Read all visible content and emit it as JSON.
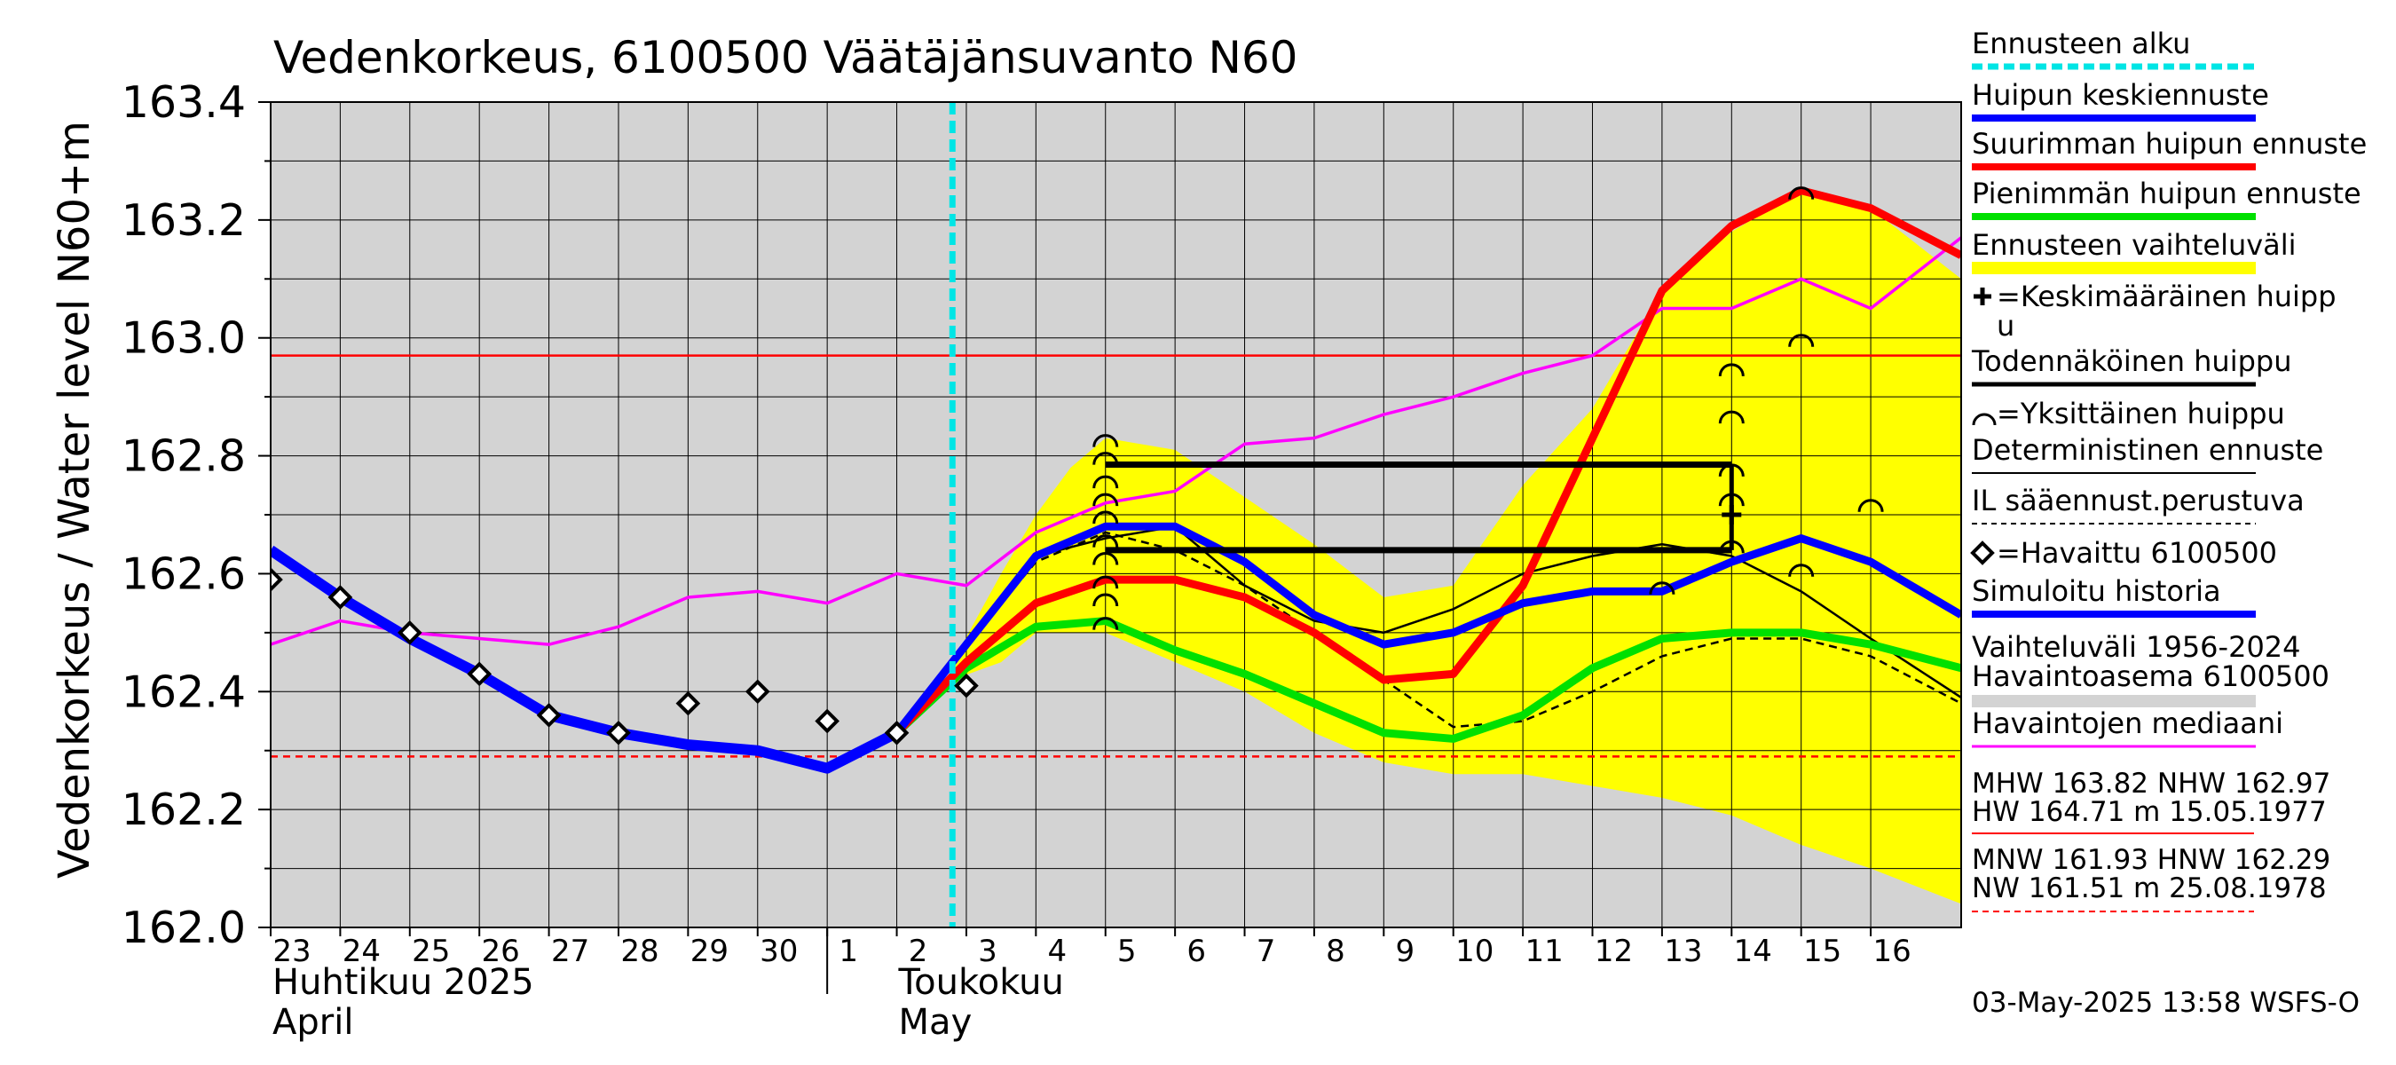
{
  "chart_data": {
    "type": "line",
    "title": "Vedenkorkeus, 6100500 Väätäjänsuvanto N60",
    "ylabel": "Vedenkorkeus / Water level",
    "yunit": "N60+m",
    "ylim": [
      162.0,
      163.4
    ],
    "yticks": [
      "162.0",
      "162.2",
      "162.4",
      "162.6",
      "162.8",
      "163.0",
      "163.2",
      "163.4"
    ],
    "xlim": [
      23,
      47.3
    ],
    "x_day_labels": [
      {
        "x": 23,
        "label": "23"
      },
      {
        "x": 24,
        "label": "24"
      },
      {
        "x": 25,
        "label": "25"
      },
      {
        "x": 26,
        "label": "26"
      },
      {
        "x": 27,
        "label": "27"
      },
      {
        "x": 28,
        "label": "28"
      },
      {
        "x": 29,
        "label": "29"
      },
      {
        "x": 30,
        "label": "30"
      },
      {
        "x": 31,
        "label": "1"
      },
      {
        "x": 32,
        "label": "2"
      },
      {
        "x": 33,
        "label": "3"
      },
      {
        "x": 34,
        "label": "4"
      },
      {
        "x": 35,
        "label": "5"
      },
      {
        "x": 36,
        "label": "6"
      },
      {
        "x": 37,
        "label": "7"
      },
      {
        "x": 38,
        "label": "8"
      },
      {
        "x": 39,
        "label": "9"
      },
      {
        "x": 40,
        "label": "10"
      },
      {
        "x": 41,
        "label": "11"
      },
      {
        "x": 42,
        "label": "12"
      },
      {
        "x": 43,
        "label": "13"
      },
      {
        "x": 44,
        "label": "14"
      },
      {
        "x": 45,
        "label": "15"
      },
      {
        "x": 46,
        "label": "16"
      }
    ],
    "month_labels": [
      {
        "x": 23,
        "fi": "Huhtikuu  2025",
        "en": "April"
      },
      {
        "x": 32,
        "fi": "Toukokuu",
        "en": "May"
      }
    ],
    "month_boundary_x": 31,
    "forecast_start_x": 32.8,
    "hlines": [
      {
        "name": "NHW",
        "value": 162.97,
        "color": "#ff0000",
        "style": "solid"
      },
      {
        "name": "HNW",
        "value": 162.29,
        "color": "#ff0000",
        "style": "dashed"
      }
    ],
    "series": [
      {
        "name": "Vaihteluväli 1956-2024",
        "kind": "band",
        "color": "#d3d3d3",
        "x": [
          23,
          47.3
        ],
        "lower": [
          162.0,
          162.0
        ],
        "upper": [
          163.4,
          163.4
        ]
      },
      {
        "name": "Ennusteen vaihteluväli",
        "kind": "band",
        "color": "#ffff00",
        "x": [
          32.8,
          33.5,
          34,
          34.5,
          35,
          36,
          37,
          38,
          39,
          40,
          41,
          42,
          43,
          44,
          45,
          46,
          47.3
        ],
        "lower": [
          162.42,
          162.45,
          162.5,
          162.5,
          162.5,
          162.45,
          162.4,
          162.33,
          162.28,
          162.26,
          162.26,
          162.24,
          162.22,
          162.19,
          162.14,
          162.1,
          162.04
        ],
        "upper": [
          162.45,
          162.6,
          162.7,
          162.78,
          162.83,
          162.81,
          162.73,
          162.65,
          162.56,
          162.58,
          162.75,
          162.88,
          163.08,
          163.18,
          163.25,
          163.22,
          163.1
        ]
      },
      {
        "name": "Havaintojen mediaani",
        "kind": "line",
        "color": "#ff00ff",
        "width": 3.5,
        "x": [
          23,
          24,
          25,
          26,
          27,
          28,
          29,
          30,
          31,
          32,
          33,
          34,
          35,
          36,
          37,
          38,
          39,
          40,
          41,
          42,
          43,
          44,
          45,
          46,
          47.3
        ],
        "y": [
          162.48,
          162.52,
          162.5,
          162.49,
          162.48,
          162.51,
          162.56,
          162.57,
          162.55,
          162.6,
          162.58,
          162.67,
          162.72,
          162.74,
          162.82,
          162.83,
          162.87,
          162.9,
          162.94,
          162.97,
          163.05,
          163.05,
          163.1,
          163.05,
          163.17
        ]
      },
      {
        "name": "IL sääennust.perustuva",
        "kind": "line",
        "color": "#000000",
        "width": 2.5,
        "dash": "9 6",
        "x": [
          32,
          33,
          34,
          35,
          36,
          37,
          38,
          39,
          40,
          41,
          42,
          43,
          44,
          45,
          46,
          47.3
        ],
        "y": [
          162.33,
          162.48,
          162.62,
          162.67,
          162.64,
          162.58,
          162.5,
          162.42,
          162.34,
          162.35,
          162.4,
          162.46,
          162.49,
          162.49,
          162.46,
          162.38
        ]
      },
      {
        "name": "Deterministinen ennuste",
        "kind": "line",
        "color": "#000000",
        "width": 2.5,
        "x": [
          32,
          33,
          34,
          35,
          36,
          37,
          38,
          39,
          40,
          41,
          42,
          43,
          44,
          45,
          46,
          47.3
        ],
        "y": [
          162.33,
          162.48,
          162.63,
          162.66,
          162.68,
          162.58,
          162.52,
          162.5,
          162.54,
          162.6,
          162.63,
          162.65,
          162.63,
          162.57,
          162.49,
          162.39
        ]
      },
      {
        "name": "Pienimmän huipun ennuste",
        "kind": "line",
        "color": "#00e000",
        "width": 9,
        "x": [
          32,
          33,
          34,
          35,
          36,
          37,
          38,
          39,
          40,
          41,
          42,
          43,
          44,
          45,
          46,
          47.3
        ],
        "y": [
          162.33,
          162.44,
          162.51,
          162.52,
          162.47,
          162.43,
          162.38,
          162.33,
          162.32,
          162.36,
          162.44,
          162.49,
          162.5,
          162.5,
          162.48,
          162.44
        ]
      },
      {
        "name": "Suurimman huipun ennuste",
        "kind": "line",
        "color": "#ff0000",
        "width": 9,
        "x": [
          32,
          33,
          34,
          35,
          36,
          37,
          38,
          39,
          40,
          41,
          42,
          43,
          44,
          45,
          46,
          47.3
        ],
        "y": [
          162.33,
          162.45,
          162.55,
          162.59,
          162.59,
          162.56,
          162.5,
          162.42,
          162.43,
          162.58,
          162.83,
          163.08,
          163.19,
          163.25,
          163.22,
          163.14
        ]
      },
      {
        "name": "Huipun keskiennuste",
        "kind": "line",
        "color": "#0000ff",
        "width": 9,
        "x": [
          32,
          33,
          34,
          35,
          36,
          37,
          38,
          39,
          40,
          41,
          42,
          43,
          44,
          45,
          46,
          47.3
        ],
        "y": [
          162.33,
          162.48,
          162.63,
          162.68,
          162.68,
          162.62,
          162.53,
          162.48,
          162.5,
          162.55,
          162.57,
          162.57,
          162.62,
          162.66,
          162.62,
          162.53
        ]
      },
      {
        "name": "Simuloitu historia",
        "kind": "line",
        "color": "#0000ff",
        "width": 12,
        "x": [
          23,
          24,
          25,
          26,
          27,
          28,
          29,
          30,
          31,
          32
        ],
        "y": [
          162.64,
          162.56,
          162.49,
          162.43,
          162.36,
          162.33,
          162.31,
          162.3,
          162.27,
          162.33
        ]
      }
    ],
    "observed": {
      "name": "=Havaittu 6100500",
      "x": [
        23,
        24,
        25,
        26,
        27,
        28,
        29,
        30,
        31,
        32,
        33
      ],
      "y": [
        162.59,
        162.56,
        162.5,
        162.43,
        162.36,
        162.33,
        162.38,
        162.4,
        162.35,
        162.33,
        162.41
      ]
    },
    "probable_peak_lines": [
      {
        "x0": 35,
        "x1": 44,
        "y": 162.785
      },
      {
        "x0": 35,
        "x1": 44,
        "y": 162.64
      }
    ],
    "probable_peak_vertical": {
      "x": 44,
      "y0": 162.64,
      "y1": 162.785
    },
    "single_peaks": [
      {
        "x": 35,
        "y": 162.52
      },
      {
        "x": 35,
        "y": 162.56
      },
      {
        "x": 35,
        "y": 162.59
      },
      {
        "x": 35,
        "y": 162.63
      },
      {
        "x": 35,
        "y": 162.66
      },
      {
        "x": 35,
        "y": 162.7
      },
      {
        "x": 35,
        "y": 162.73
      },
      {
        "x": 35,
        "y": 162.76
      },
      {
        "x": 35,
        "y": 162.8
      },
      {
        "x": 35,
        "y": 162.83
      },
      {
        "x": 43,
        "y": 162.58
      },
      {
        "x": 44,
        "y": 162.65
      },
      {
        "x": 44,
        "y": 162.73
      },
      {
        "x": 44,
        "y": 162.78
      },
      {
        "x": 44,
        "y": 162.87
      },
      {
        "x": 44,
        "y": 162.95
      },
      {
        "x": 45,
        "y": 162.61
      },
      {
        "x": 45,
        "y": 163.0
      },
      {
        "x": 45,
        "y": 163.25
      },
      {
        "x": 46,
        "y": 162.72
      }
    ],
    "average_peak": {
      "x": 44,
      "y": 162.7
    }
  },
  "legend": [
    {
      "id": "ennusteen-alku",
      "label": "Ennusteen alku",
      "color": "#00e5e5",
      "width": 7,
      "dash": "12 6"
    },
    {
      "id": "huipun-keskiennuste",
      "label": "Huipun keskiennuste",
      "color": "#0000ff",
      "width": 8
    },
    {
      "id": "suurimman-huipun",
      "label": "Suurimman huipun ennuste",
      "color": "#ff0000",
      "width": 8
    },
    {
      "id": "pienimman-huipun",
      "label": "Pienimmän huipun ennuste",
      "color": "#00e000",
      "width": 8
    },
    {
      "id": "vaihteluvali",
      "label": "Ennusteen vaihteluväli",
      "color": "#ffff00",
      "width": 14
    },
    {
      "id": "keskimaarainen",
      "label": "=Keskimääräinen huipp",
      "label2": "u",
      "marker": "plus"
    },
    {
      "id": "todennakoinen",
      "label": "Todennäköinen huippu",
      "color": "#000000",
      "width": 5
    },
    {
      "id": "yksittainen",
      "label": "=Yksittäinen huippu",
      "marker": "arc"
    },
    {
      "id": "deterministinen",
      "label": "Deterministinen ennuste",
      "color": "#000000",
      "width": 2
    },
    {
      "id": "il-saaennust",
      "label": "IL sääennust.perustuva",
      "color": "#000000",
      "width": 2,
      "dash": "6 5"
    },
    {
      "id": "havaittu",
      "label": "=Havaittu 6100500",
      "marker": "diamond"
    },
    {
      "id": "simuloitu",
      "label": "Simuloitu historia",
      "color": "#0000ff",
      "width": 8
    },
    {
      "id": "vaihteluvali-historia",
      "label": "Vaihteluväli 1956-2024",
      "label2": " Havaintoasema 6100500",
      "color": "#d3d3d3",
      "width": 14
    },
    {
      "id": "mediaani",
      "label": "Havaintojen mediaani",
      "color": "#ff00ff",
      "width": 3
    }
  ],
  "stats": {
    "mhw_line1": "MHW 163.82 NHW 162.97",
    "mhw_line2": "HW 164.71 m 15.05.1977",
    "mnw_line1": "MNW 161.93 HNW 162.29",
    "mnw_line2": "NW 161.51 m 25.08.1978",
    "mhw_color": "#ff0000",
    "mnw_color": "#ff0000"
  },
  "footer": "03-May-2025 13:58 WSFS-O"
}
